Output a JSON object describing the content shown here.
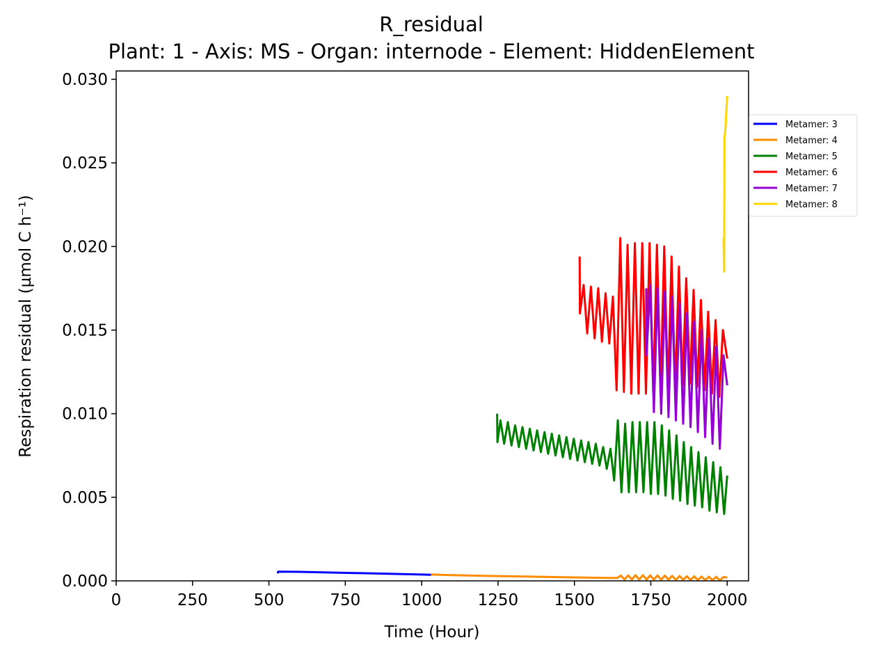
{
  "chart_data": {
    "type": "line",
    "title": "R_residual",
    "subtitle": "Plant: 1 - Axis: MS - Organ: internode - Element: HiddenElement",
    "xlabel": "Time (Hour)",
    "ylabel": "Respiration residual (µmol C h⁻¹)",
    "xlim": [
      0,
      2070
    ],
    "ylim": [
      0,
      0.0305
    ],
    "x_ticks": [
      "0",
      "250",
      "500",
      "750",
      "1000",
      "1250",
      "1500",
      "1750",
      "2000"
    ],
    "y_ticks": [
      "0.000",
      "0.005",
      "0.010",
      "0.015",
      "0.020",
      "0.025",
      "0.030"
    ],
    "grid": false,
    "legend_position": "outside-top-right",
    "series": [
      {
        "name": "Metamer: 3",
        "color": "#0000ff",
        "x": [
          529,
          530,
          600,
          700,
          800,
          900,
          1000,
          1031
        ],
        "y": [
          0.00045,
          0.00055,
          0.00054,
          0.0005,
          0.00046,
          0.00042,
          0.00038,
          0.00036
        ]
      },
      {
        "name": "Metamer: 4",
        "color": "#ff8c00",
        "x": [
          1031,
          1100,
          1200,
          1300,
          1400,
          1500,
          1600,
          1640,
          1652,
          1664,
          1676,
          1688,
          1700,
          1712,
          1724,
          1736,
          1748,
          1760,
          1772,
          1784,
          1796,
          1808,
          1820,
          1832,
          1844,
          1856,
          1868,
          1880,
          1892,
          1904,
          1916,
          1928,
          1940,
          1952,
          1964,
          1976,
          1988,
          2000
        ],
        "y": [
          0.00038,
          0.00034,
          0.0003,
          0.00027,
          0.00024,
          0.00021,
          0.00018,
          0.00017,
          0.00032,
          8e-05,
          0.00033,
          8e-05,
          0.00034,
          8e-05,
          0.00034,
          8e-05,
          0.00033,
          8e-05,
          0.00032,
          7e-05,
          0.00031,
          7e-05,
          0.0003,
          6e-05,
          0.00029,
          6e-05,
          0.00028,
          5e-05,
          0.00027,
          5e-05,
          0.00026,
          4e-05,
          0.00025,
          4e-05,
          0.00024,
          3e-05,
          0.00023,
          0.0002
        ]
      },
      {
        "name": "Metamer: 5",
        "color": "#008000",
        "x": [
          1247,
          1248,
          1258,
          1270,
          1282,
          1294,
          1306,
          1318,
          1330,
          1342,
          1354,
          1366,
          1378,
          1390,
          1402,
          1414,
          1426,
          1438,
          1450,
          1462,
          1474,
          1486,
          1498,
          1510,
          1522,
          1534,
          1546,
          1558,
          1570,
          1582,
          1594,
          1606,
          1618,
          1630,
          1642,
          1654,
          1666,
          1678,
          1690,
          1702,
          1714,
          1726,
          1738,
          1750,
          1762,
          1774,
          1786,
          1798,
          1810,
          1822,
          1834,
          1846,
          1858,
          1870,
          1882,
          1894,
          1906,
          1918,
          1930,
          1942,
          1954,
          1966,
          1978,
          1990,
          2000
        ],
        "y": [
          0.01,
          0.0083,
          0.0096,
          0.0082,
          0.0095,
          0.0081,
          0.0093,
          0.008,
          0.0092,
          0.0079,
          0.0091,
          0.0078,
          0.009,
          0.0077,
          0.0089,
          0.0076,
          0.0088,
          0.0075,
          0.0087,
          0.0074,
          0.0086,
          0.0073,
          0.0085,
          0.0072,
          0.0084,
          0.0071,
          0.0083,
          0.007,
          0.0082,
          0.0069,
          0.008,
          0.0067,
          0.0079,
          0.006,
          0.0096,
          0.0053,
          0.0094,
          0.0053,
          0.0095,
          0.0053,
          0.0095,
          0.0053,
          0.0095,
          0.0052,
          0.0095,
          0.0052,
          0.0093,
          0.0051,
          0.009,
          0.0049,
          0.0087,
          0.0048,
          0.0083,
          0.0046,
          0.008,
          0.0045,
          0.0077,
          0.0044,
          0.0074,
          0.0042,
          0.0071,
          0.0041,
          0.0068,
          0.004,
          0.0063
        ]
      },
      {
        "name": "Metamer: 6",
        "color": "#ff0000",
        "x": [
          1517,
          1518,
          1530,
          1542,
          1554,
          1566,
          1578,
          1590,
          1602,
          1614,
          1626,
          1638,
          1650,
          1662,
          1674,
          1686,
          1698,
          1710,
          1722,
          1734,
          1746,
          1758,
          1770,
          1782,
          1794,
          1806,
          1818,
          1830,
          1842,
          1854,
          1866,
          1878,
          1890,
          1902,
          1914,
          1926,
          1938,
          1950,
          1962,
          1974,
          1986,
          2000
        ],
        "y": [
          0.0194,
          0.016,
          0.0177,
          0.0148,
          0.0176,
          0.0145,
          0.0175,
          0.0143,
          0.0172,
          0.0142,
          0.017,
          0.0114,
          0.0205,
          0.0113,
          0.0201,
          0.0112,
          0.0202,
          0.0112,
          0.0202,
          0.0112,
          0.0202,
          0.0112,
          0.0201,
          0.0112,
          0.02,
          0.0113,
          0.0194,
          0.0114,
          0.0188,
          0.0117,
          0.0181,
          0.0118,
          0.0174,
          0.0116,
          0.0168,
          0.0114,
          0.0161,
          0.0112,
          0.0156,
          0.011,
          0.015,
          0.0133
        ]
      },
      {
        "name": "Metamer: 7",
        "color": "#9400d3",
        "x": [
          1735,
          1736,
          1748,
          1760,
          1772,
          1784,
          1796,
          1808,
          1820,
          1832,
          1844,
          1856,
          1868,
          1880,
          1892,
          1904,
          1916,
          1928,
          1940,
          1952,
          1964,
          1976,
          1988,
          2000
        ],
        "y": [
          0.0175,
          0.0135,
          0.0177,
          0.0101,
          0.0175,
          0.01,
          0.0173,
          0.0098,
          0.017,
          0.0096,
          0.0166,
          0.0094,
          0.016,
          0.0092,
          0.0155,
          0.0089,
          0.015,
          0.0086,
          0.0145,
          0.0082,
          0.014,
          0.0079,
          0.0135,
          0.0117
        ]
      },
      {
        "name": "Metamer: 8",
        "color": "#ffd700",
        "x": [
          1988,
          1990,
          1991,
          1993,
          1994,
          1996,
          1997,
          1999,
          2000
        ],
        "y": [
          0.0205,
          0.0185,
          0.0265,
          0.0268,
          0.027,
          0.0275,
          0.028,
          0.0286,
          0.029
        ]
      }
    ]
  }
}
